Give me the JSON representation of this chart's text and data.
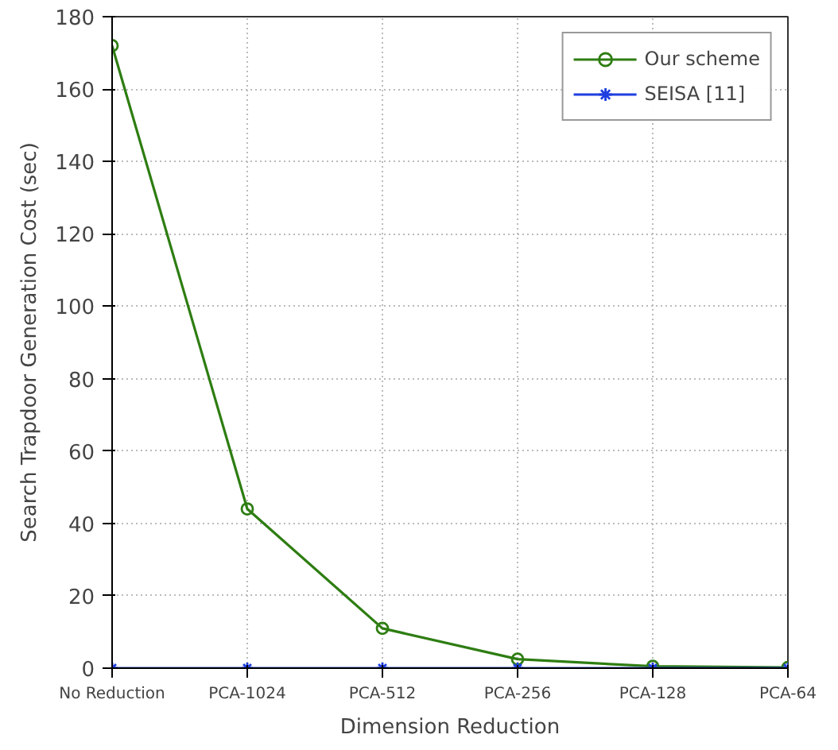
{
  "chart_data": {
    "type": "line",
    "xlabel": "Dimension Reduction",
    "ylabel": "Search Trapdoor Generation Cost (sec)",
    "categories": [
      "No Reduction",
      "PCA-1024",
      "PCA-512",
      "PCA-256",
      "PCA-128",
      "PCA-64"
    ],
    "series": [
      {
        "name": "Our scheme",
        "color": "#2e7d12",
        "values": [
          172,
          44,
          11,
          2.5,
          0.5,
          0.2
        ],
        "marker": "circle"
      },
      {
        "name": "SEISA [11]",
        "color": "#1f3fe0",
        "values": [
          0,
          0,
          0,
          0,
          0,
          0
        ],
        "marker": "cross"
      }
    ],
    "ylim": [
      0,
      180
    ],
    "yticks": [
      0,
      20,
      40,
      60,
      80,
      100,
      120,
      140,
      160,
      180
    ],
    "grid": true,
    "legend": "top right",
    "line_style": "solid"
  }
}
